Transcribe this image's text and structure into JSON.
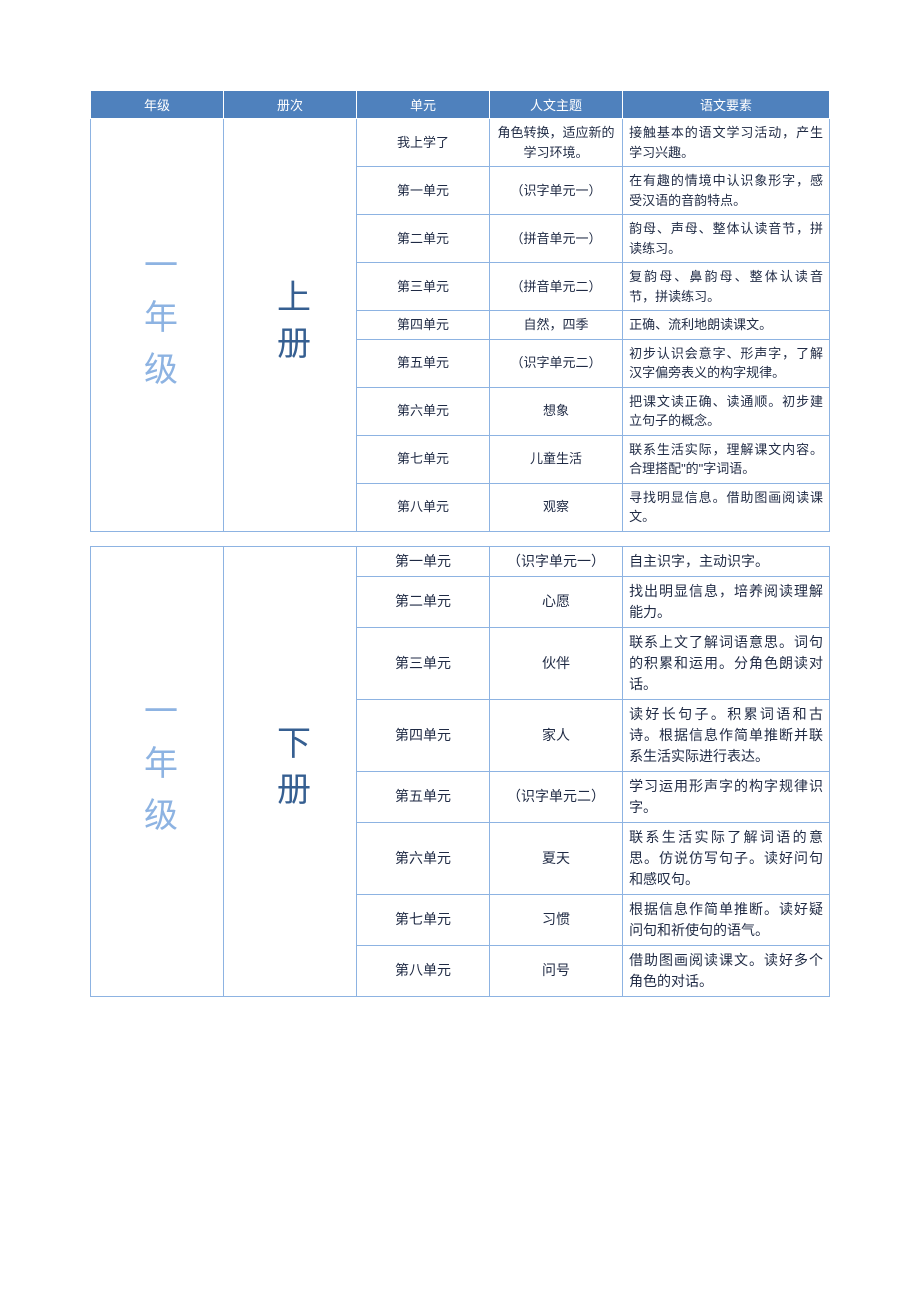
{
  "colors": {
    "header_bg": "#4f81bd",
    "header_text": "#ffffff",
    "border": "#8db3e2",
    "grade_text": "#8db3e2",
    "volume_text": "#365f91",
    "body_text": "#1f2a44"
  },
  "fontsizes": {
    "header": 13,
    "body_small": 13,
    "body_large": 14,
    "grade": 34,
    "volume": 34
  },
  "column_widths_pct": [
    18,
    18,
    18,
    18,
    28
  ],
  "headers": [
    "年级",
    "册次",
    "单元",
    "人文主题",
    "语文要素"
  ],
  "sections": [
    {
      "grade": "一年级",
      "volume": "上册",
      "font_class": "small",
      "rows": [
        {
          "unit": "我上学了",
          "theme": "角色转换，适应新的学习环境。",
          "element": "接触基本的语文学习活动，产生学习兴趣。"
        },
        {
          "unit": "第一单元",
          "theme": "（识字单元一）",
          "element": "在有趣的情境中认识象形字，感受汉语的音韵特点。"
        },
        {
          "unit": "第二单元",
          "theme": "（拼音单元一）",
          "element": "韵母、声母、整体认读音节，拼读练习。"
        },
        {
          "unit": "第三单元",
          "theme": "（拼音单元二）",
          "element": "复韵母、鼻韵母、整体认读音节，拼读练习。"
        },
        {
          "unit": "第四单元",
          "theme": "自然，四季",
          "element": "正确、流利地朗读课文。"
        },
        {
          "unit": "第五单元",
          "theme": "（识字单元二）",
          "element": "初步认识会意字、形声字，了解汉字偏旁表义的构字规律。"
        },
        {
          "unit": "第六单元",
          "theme": "想象",
          "element": "把课文读正确、读通顺。初步建立句子的概念。"
        },
        {
          "unit": "第七单元",
          "theme": "儿童生活",
          "element": "联系生活实际，理解课文内容。合理搭配\"的\"字词语。"
        },
        {
          "unit": "第八单元",
          "theme": "观察",
          "element": "寻找明显信息。借助图画阅读课文。"
        }
      ]
    },
    {
      "grade": "一年级",
      "volume": "下册",
      "font_class": "large",
      "rows": [
        {
          "unit": "第一单元",
          "theme": "（识字单元一）",
          "element": "自主识字，主动识字。"
        },
        {
          "unit": "第二单元",
          "theme": "心愿",
          "element": "找出明显信息，培养阅读理解能力。"
        },
        {
          "unit": "第三单元",
          "theme": "伙伴",
          "element": "联系上文了解词语意思。词句的积累和运用。分角色朗读对话。"
        },
        {
          "unit": "第四单元",
          "theme": "家人",
          "element": "读好长句子。积累词语和古诗。根据信息作简单推断并联系生活实际进行表达。"
        },
        {
          "unit": "第五单元",
          "theme": "（识字单元二）",
          "element": "学习运用形声字的构字规律识字。"
        },
        {
          "unit": "第六单元",
          "theme": "夏天",
          "element": "联系生活实际了解词语的意思。仿说仿写句子。读好问句和感叹句。"
        },
        {
          "unit": "第七单元",
          "theme": "习惯",
          "element": "根据信息作简单推断。读好疑问句和祈使句的语气。"
        },
        {
          "unit": "第八单元",
          "theme": "问号",
          "element": "借助图画阅读课文。读好多个角色的对话。"
        }
      ]
    }
  ]
}
